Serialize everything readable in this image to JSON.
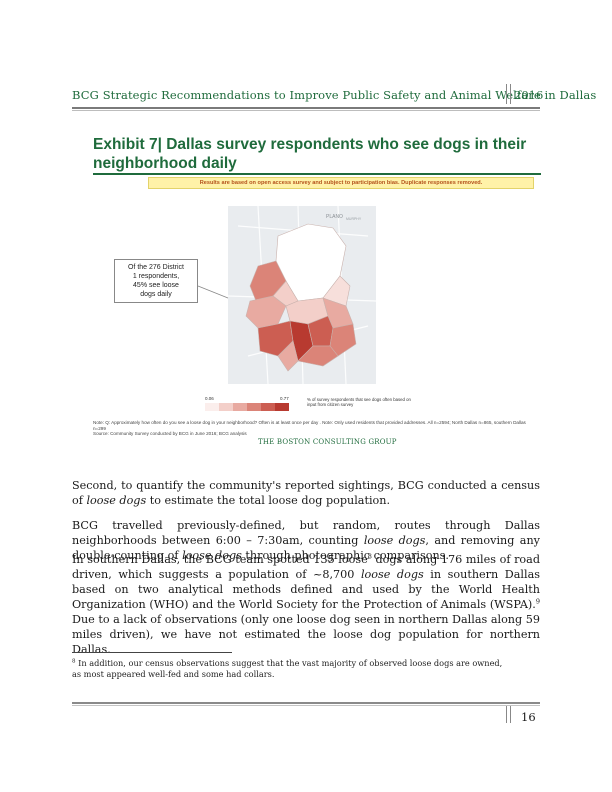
{
  "header": {
    "title": "BCG Strategic Recommendations to Improve Public Safety and Animal Welfare in Dallas",
    "year": "2016"
  },
  "exhibit": {
    "title": "Exhibit 7| Dallas survey respondents who see dogs in their neighborhood daily",
    "banner": "Results are based on open access survey and subject to participation bias. Duplicate responses removed.",
    "callout": [
      "Of the 276 District",
      "1 respondents,",
      "45% see loose",
      "dogs daily"
    ],
    "map_labels": {
      "plano": "PLANO",
      "murphy": "MURPHY"
    },
    "legend": {
      "min": "0.06",
      "max": "0.77",
      "description": "% of survey respondents that see dogs often based on input from citizen survey",
      "colors": [
        "#fbeeec",
        "#f3cfc9",
        "#e8aaa1",
        "#db8478",
        "#cc5e52",
        "#b83a30"
      ]
    },
    "note": "Note: Q: Approximately how often do you see a loose dog in your neighborhood? Often is at least once per day . Note: Only used residents that provided addresses. All n=2594; North Dallas n=865, southern Dallas n=299",
    "source": "Source: Community Survey conducted by BCG in June 2016; BCG analysis",
    "logo": "THE BOSTON CONSULTING GROUP"
  },
  "body": {
    "p1_a": "Second, to quantify the community's reported sightings, BCG conducted a census of ",
    "p1_i": "loose dogs",
    "p1_b": " to estimate the total loose dog population.",
    "p2_a": "BCG travelled previously-defined, but random, routes through Dallas neighborhoods between 6:00 – 7:30am, counting ",
    "p2_i1": "loose dogs",
    "p2_b": ", and removing any double-counting of ",
    "p2_i2": "loose dogs",
    "p2_c": " through photographic comparisons.",
    "p3_a": "In southern Dallas, the BCG team spotted 135 loose",
    "p3_sup1": "8",
    "p3_b": " dogs along 176 miles of road driven, which suggests a population of ~8,700 ",
    "p3_i": "loose dogs",
    "p3_c": " in southern Dallas based on two analytical methods defined and used by the World Health Organization (WHO) and the World Society for the Protection of Animals (WSPA).",
    "p3_sup2": "9",
    "p3_d": " Due to a lack of observations (only one loose dog seen in northern Dallas along 59 miles driven), we have not estimated the loose dog population for northern Dallas."
  },
  "footnote": {
    "num": "8",
    "text": " In addition, our census observations suggest that the vast majority of observed loose dogs are owned, as most appeared well-fed and some had collars."
  },
  "footer": {
    "page": "16"
  }
}
